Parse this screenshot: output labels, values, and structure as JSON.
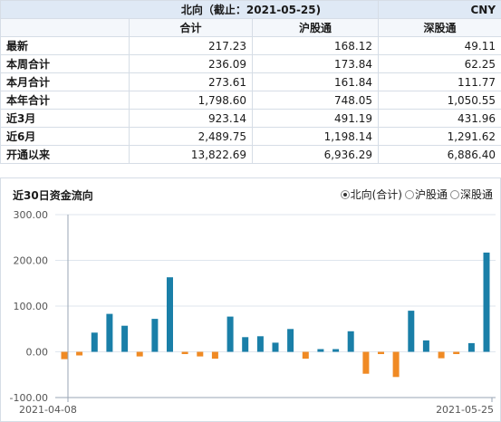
{
  "table": {
    "title": "北向（截止：2021-05-25)",
    "currency": "CNY",
    "headers": [
      "合计",
      "沪股通",
      "深股通"
    ],
    "rows": [
      {
        "label": "最新",
        "total": "217.23",
        "sh": "168.12",
        "sz": "49.11"
      },
      {
        "label": "本周合计",
        "total": "236.09",
        "sh": "173.84",
        "sz": "62.25"
      },
      {
        "label": "本月合计",
        "total": "273.61",
        "sh": "161.84",
        "sz": "111.77"
      },
      {
        "label": "本年合计",
        "total": "1,798.60",
        "sh": "748.05",
        "sz": "1,050.55"
      },
      {
        "label": "近3月",
        "total": "923.14",
        "sh": "491.19",
        "sz": "431.96"
      },
      {
        "label": "近6月",
        "total": "2,489.75",
        "sh": "1,198.14",
        "sz": "1,291.62"
      },
      {
        "label": "开通以来",
        "total": "13,822.69",
        "sh": "6,936.29",
        "sz": "6,886.40"
      }
    ]
  },
  "chart_panel": {
    "title": "近30日资金流向",
    "options": [
      "北向(合计)",
      "沪股通",
      "深股通"
    ],
    "selected": 0
  },
  "chart_data": {
    "type": "bar",
    "start_label": "2021-04-08",
    "end_label": "2021-05-25",
    "ylim": [
      -100,
      300
    ],
    "yticks": [
      "-100.00",
      "0.00",
      "100.00",
      "200.00",
      "300.00"
    ],
    "values": [
      -16,
      -8,
      42,
      83,
      57,
      -10,
      72,
      163,
      -5,
      -10,
      -15,
      77,
      32,
      34,
      20,
      50,
      -15,
      6,
      6,
      45,
      -48,
      -5,
      -55,
      90,
      25,
      -14,
      -5,
      19,
      217
    ],
    "colors": {
      "positive": "#1a7fa8",
      "negative": "#f08a24",
      "grid": "#dfe6ee",
      "axis": "#9aa6b4"
    }
  }
}
